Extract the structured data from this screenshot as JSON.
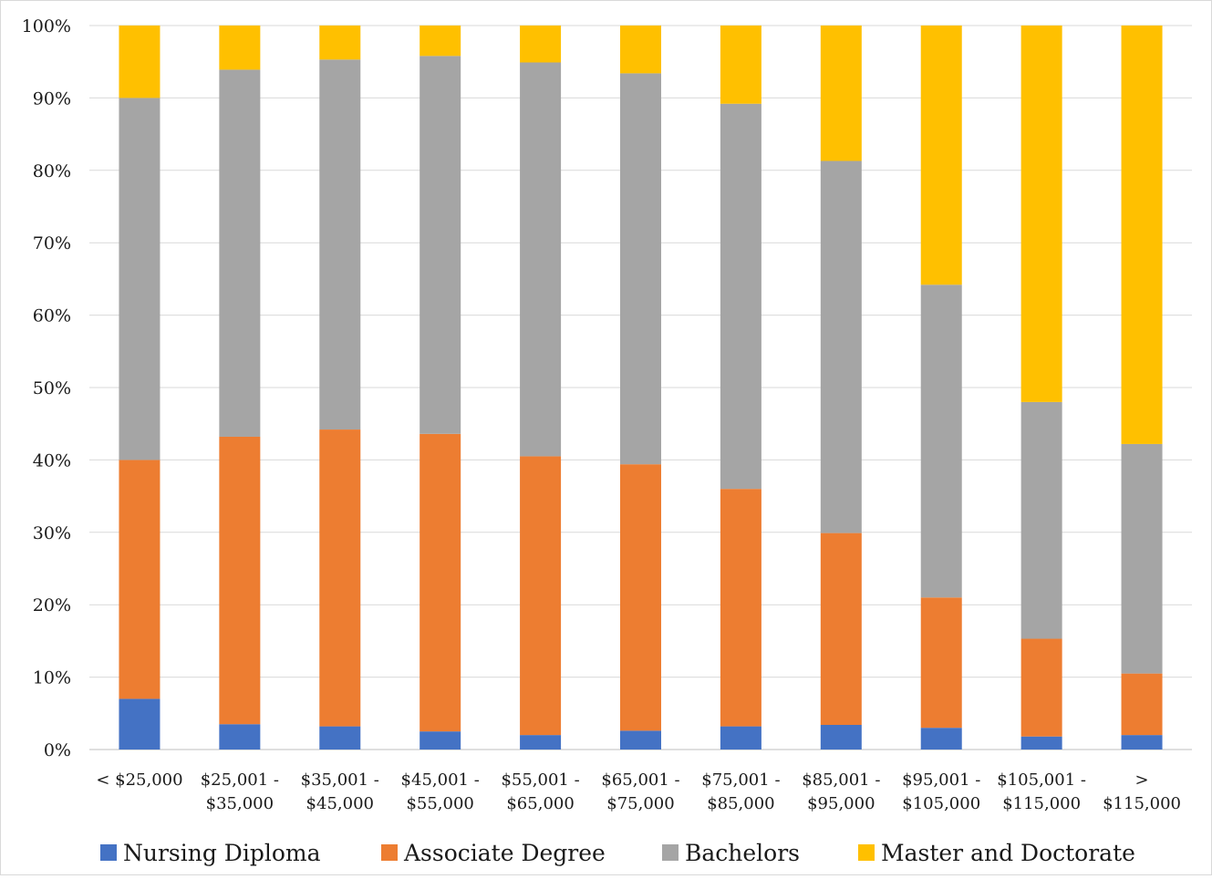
{
  "chart_data": {
    "type": "bar",
    "stacked": true,
    "percent_stacked": true,
    "categories": [
      [
        "< $25,000"
      ],
      [
        "$25,001 -",
        "$35,000"
      ],
      [
        "$35,001 -",
        "$45,000"
      ],
      [
        "$45,001 -",
        "$55,000"
      ],
      [
        "$55,001 -",
        "$65,000"
      ],
      [
        "$65,001 -",
        "$75,000"
      ],
      [
        "$75,001 -",
        "$85,000"
      ],
      [
        "$85,001 -",
        "$95,000"
      ],
      [
        "$95,001 -",
        "$105,000"
      ],
      [
        "$105,001 -",
        "$115,000"
      ],
      [
        ">",
        "$115,000"
      ]
    ],
    "series": [
      {
        "name": "Nursing Diploma",
        "color": "#4472C4",
        "values": [
          7.0,
          3.5,
          3.2,
          2.5,
          2.0,
          2.6,
          3.2,
          3.4,
          3.0,
          1.8,
          2.0
        ]
      },
      {
        "name": "Associate Degree",
        "color": "#ED7D31",
        "values": [
          33.0,
          39.7,
          41.0,
          41.1,
          38.5,
          36.8,
          32.8,
          26.5,
          18.0,
          13.5,
          8.5
        ]
      },
      {
        "name": "Bachelors",
        "color": "#A5A5A5",
        "values": [
          50.0,
          50.7,
          51.1,
          52.2,
          54.4,
          54.0,
          53.2,
          51.4,
          43.2,
          32.7,
          31.7
        ]
      },
      {
        "name": "Master and Doctorate",
        "color": "#FFC000",
        "values": [
          10.0,
          6.1,
          4.7,
          4.2,
          5.1,
          6.6,
          10.8,
          18.7,
          35.8,
          52.0,
          57.8
        ]
      }
    ],
    "yticks": [
      "0%",
      "10%",
      "20%",
      "30%",
      "40%",
      "50%",
      "60%",
      "70%",
      "80%",
      "90%",
      "100%"
    ],
    "ylim": [
      0,
      100
    ],
    "grid": true,
    "legend_position": "bottom",
    "title": "",
    "xlabel": "",
    "ylabel": ""
  }
}
